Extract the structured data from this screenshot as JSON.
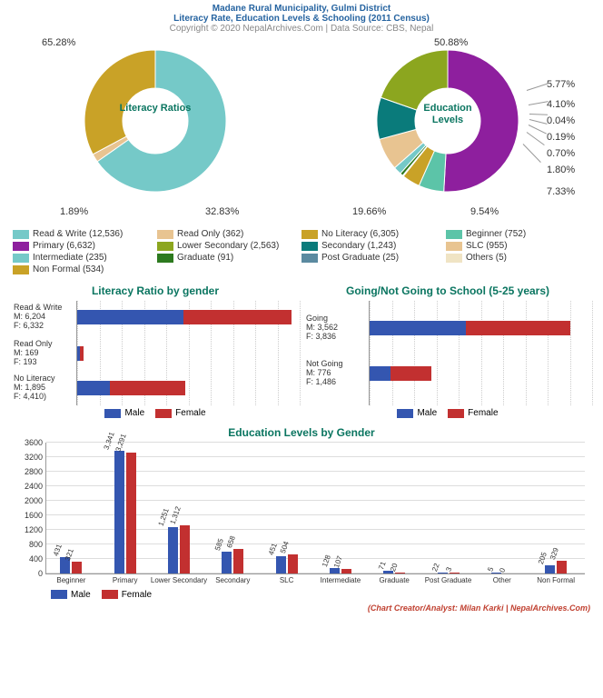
{
  "header": {
    "title": "Madane Rural Municipality, Gulmi District",
    "subtitle": "Literacy Rate, Education Levels & Schooling (2011 Census)",
    "copyright": "Copyright © 2020 NepalArchives.Com | Data Source: CBS, Nepal",
    "title_fontsize": 14,
    "title_color": "#2563a0",
    "copyright_color": "#888888"
  },
  "palette": {
    "teal": "#75c9c8",
    "tan": "#e8c491",
    "mustard": "#c9a227",
    "purple": "#8e1f9e",
    "olive": "#8ca61f",
    "darkteal": "#0a7b7b",
    "mint": "#5cc4a8",
    "slate": "#5b8aa0",
    "cream": "#f0e4c4",
    "darkgreen": "#2d7a1f",
    "male": "#3456b0",
    "female": "#c23030"
  },
  "donut1": {
    "center": "Literacy Ratios",
    "type": "donut",
    "inner_pct": 45,
    "slices": [
      {
        "label": "Read & Write (12,536)",
        "pct": 65.28,
        "color": "#75c9c8",
        "show_pct": "65.28%"
      },
      {
        "label": "Read Only (362)",
        "pct": 1.89,
        "color": "#e8c491",
        "show_pct": "1.89%"
      },
      {
        "label": "No Literacy (6,305)",
        "pct": 32.83,
        "color": "#c9a227",
        "show_pct": "32.83%"
      }
    ]
  },
  "donut2": {
    "center": "Education Levels",
    "type": "donut",
    "inner_pct": 45,
    "slices": [
      {
        "label": "Primary (6,632)",
        "pct": 50.88,
        "color": "#8e1f9e",
        "show_pct": "50.88%"
      },
      {
        "label": "Beginner (752)",
        "pct": 5.77,
        "color": "#5cc4a8",
        "show_pct": "5.77%"
      },
      {
        "label": "Non Formal (534)",
        "pct": 4.1,
        "color": "#c9a227",
        "show_pct": "4.10%"
      },
      {
        "label": "Others (5)",
        "pct": 0.04,
        "color": "#f0e4c4",
        "show_pct": "0.04%"
      },
      {
        "label": "Post Graduate (25)",
        "pct": 0.19,
        "color": "#5b8aa0",
        "show_pct": "0.19%"
      },
      {
        "label": "Graduate (91)",
        "pct": 0.7,
        "color": "#2d7a1f",
        "show_pct": "0.70%"
      },
      {
        "label": "Intermediate (235)",
        "pct": 1.8,
        "color": "#75c9c8",
        "show_pct": "1.80%"
      },
      {
        "label": "SLC (955)",
        "pct": 7.33,
        "color": "#e8c491",
        "show_pct": "7.33%"
      },
      {
        "label": "Secondary (1,243)",
        "pct": 9.54,
        "color": "#0a7b7b",
        "show_pct": "9.54%"
      },
      {
        "label": "Lower Secondary (2,563)",
        "pct": 19.66,
        "color": "#8ca61f",
        "show_pct": "19.66%"
      }
    ]
  },
  "legend_row1": [
    {
      "label": "Read & Write (12,536)",
      "color": "#75c9c8"
    },
    {
      "label": "Read Only (362)",
      "color": "#e8c491"
    },
    {
      "label": "No Literacy (6,305)",
      "color": "#c9a227"
    },
    {
      "label": "Beginner (752)",
      "color": "#5cc4a8"
    }
  ],
  "legend_row2": [
    {
      "label": "Primary (6,632)",
      "color": "#8e1f9e"
    },
    {
      "label": "Lower Secondary (2,563)",
      "color": "#8ca61f"
    },
    {
      "label": "Secondary (1,243)",
      "color": "#0a7b7b"
    },
    {
      "label": "SLC (955)",
      "color": "#e8c491"
    }
  ],
  "legend_row3": [
    {
      "label": "Intermediate (235)",
      "color": "#75c9c8"
    },
    {
      "label": "Graduate (91)",
      "color": "#2d7a1f"
    },
    {
      "label": "Post Graduate (25)",
      "color": "#5b8aa0"
    },
    {
      "label": "Others (5)",
      "color": "#f0e4c4"
    }
  ],
  "legend_row4": [
    {
      "label": "Non Formal (534)",
      "color": "#c9a227"
    }
  ],
  "hbar1": {
    "title": "Literacy Ratio by gender",
    "max": 13000,
    "rows": [
      {
        "label": "Read & Write\nM: 6,204\nF: 6,332",
        "m": 6204,
        "f": 6332
      },
      {
        "label": "Read Only\nM: 169\nF: 193",
        "m": 169,
        "f": 193
      },
      {
        "label": "No Literacy\nM: 1,895\nF: 4,410)",
        "m": 1895,
        "f": 4410
      }
    ]
  },
  "hbar2": {
    "title": "Going/Not Going to School (5-25 years)",
    "max": 8200,
    "rows": [
      {
        "label": "Going\nM: 3,562\nF: 3,836",
        "m": 3562,
        "f": 3836
      },
      {
        "label": "Not Going\nM: 776\nF: 1,486",
        "m": 776,
        "f": 1486
      }
    ]
  },
  "mini_legend": [
    {
      "label": "Male",
      "color": "#3456b0"
    },
    {
      "label": "Female",
      "color": "#c23030"
    }
  ],
  "vbar": {
    "title": "Education Levels by Gender",
    "ymax": 3600,
    "ystep": 400,
    "categories": [
      {
        "name": "Beginner",
        "m": 431,
        "f": 321
      },
      {
        "name": "Primary",
        "m": 3341,
        "f": 3291
      },
      {
        "name": "Lower Secondary",
        "m": 1251,
        "f": 1312
      },
      {
        "name": "Secondary",
        "m": 585,
        "f": 658
      },
      {
        "name": "SLC",
        "m": 451,
        "f": 504
      },
      {
        "name": "Intermediate",
        "m": 128,
        "f": 107
      },
      {
        "name": "Graduate",
        "m": 71,
        "f": 20
      },
      {
        "name": "Post Graduate",
        "m": 22,
        "f": 3
      },
      {
        "name": "Other",
        "m": 5,
        "f": 0
      },
      {
        "name": "Non Formal",
        "m": 205,
        "f": 329
      }
    ]
  },
  "credit": "(Chart Creator/Analyst: Milan Karki | NepalArchives.Com)"
}
